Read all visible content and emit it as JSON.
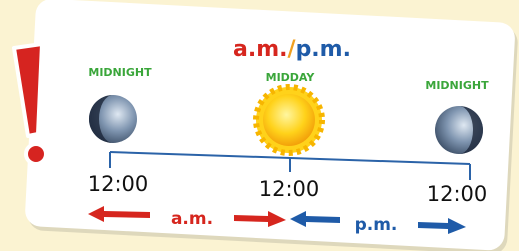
{
  "title": {
    "am": "a.m.",
    "slash": "/",
    "pm": "p.m."
  },
  "labels": [
    "MIDNIGHT",
    "MIDDAY",
    "MIDNIGHT"
  ],
  "times": [
    "12:00",
    "12:00",
    "12:00"
  ],
  "arrows": {
    "am": "a.m.",
    "pm": "p.m."
  }
}
